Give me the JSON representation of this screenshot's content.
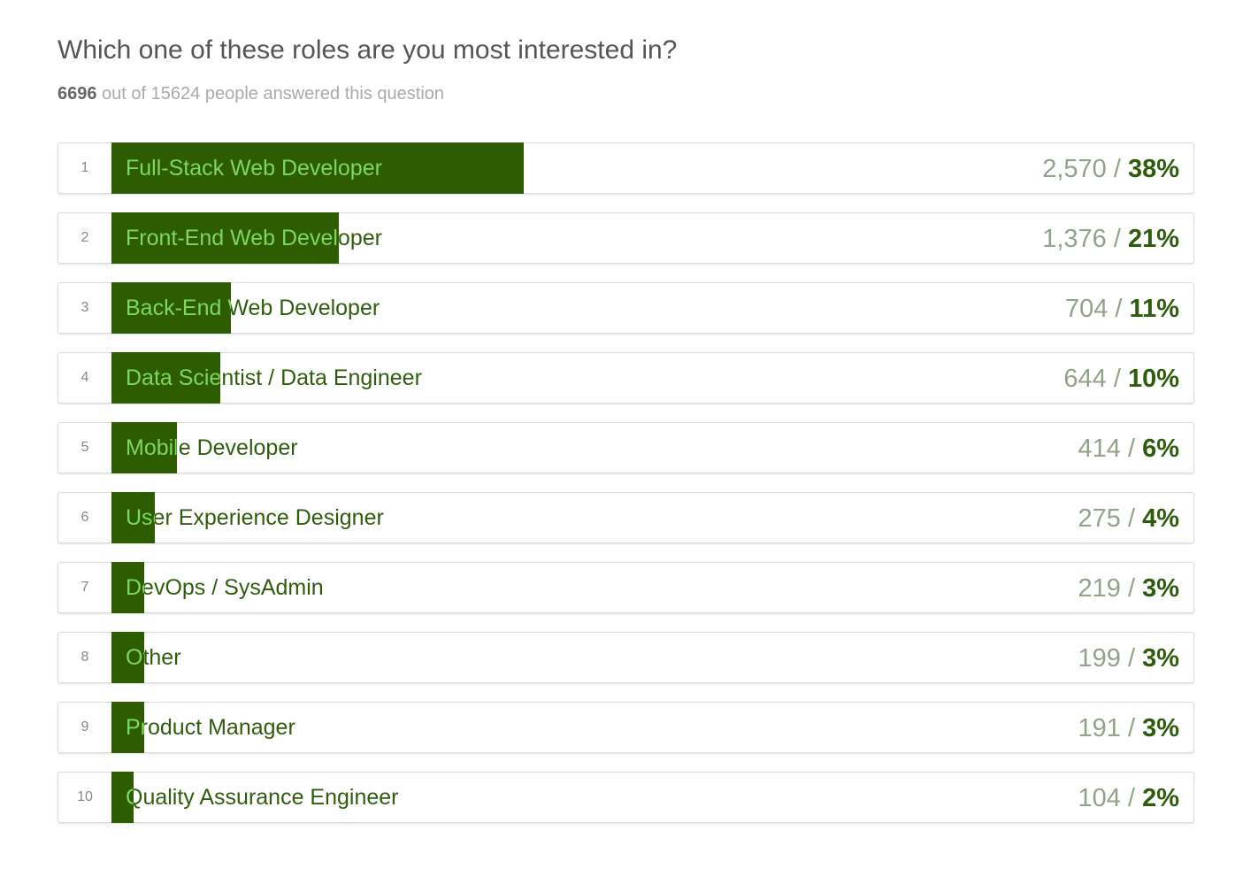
{
  "question": "Which one of these roles are you most interested in?",
  "answered": "6696",
  "answered_suffix": " out of 15624 people answered this question",
  "colors": {
    "bar": "#2d5d00",
    "label_in_bar": "#7ed861",
    "label": "#2d5d0b",
    "count": "#93a38a"
  },
  "chart_data": {
    "type": "bar",
    "orientation": "horizontal",
    "categories": [
      "Full-Stack Web Developer",
      "Front-End Web Developer",
      "Back-End Web Developer",
      "Data Scientist / Data Engineer",
      "Mobile Developer",
      "User Experience Designer",
      "DevOps / SysAdmin",
      "Other",
      "Product Manager",
      "Quality Assurance Engineer"
    ],
    "counts": [
      "2,570",
      "1,376",
      "704",
      "644",
      "414",
      "275",
      "219",
      "199",
      "191",
      "104"
    ],
    "percents": [
      "38%",
      "21%",
      "11%",
      "10%",
      "6%",
      "4%",
      "3%",
      "3%",
      "3%",
      "2%"
    ],
    "values": [
      38,
      21,
      11,
      10,
      6,
      4,
      3,
      3,
      3,
      2
    ],
    "xlim": [
      0,
      100
    ]
  }
}
